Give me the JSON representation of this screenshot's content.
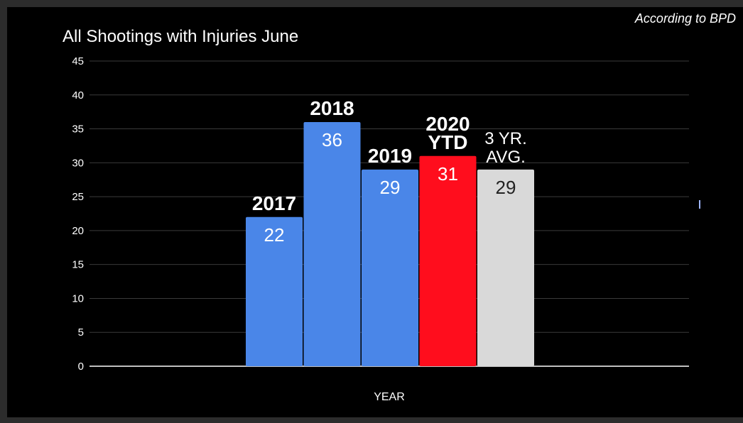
{
  "title": "All Shootings with Injuries June",
  "source_note": "According to BPD",
  "chart_data": {
    "type": "bar",
    "title": "All Shootings with Injuries June",
    "xlabel": "YEAR",
    "ylabel": "",
    "ylim": [
      0,
      45
    ],
    "yticks": [
      0,
      5,
      10,
      15,
      20,
      25,
      30,
      35,
      40,
      45
    ],
    "grid": true,
    "bars": [
      {
        "label_lines": [
          "2017"
        ],
        "value": 22,
        "value_label": "22",
        "color": "#4a86e8",
        "label_bold": true,
        "value_color": "#ffffff"
      },
      {
        "label_lines": [
          "2018"
        ],
        "value": 36,
        "value_label": "36",
        "color": "#4a86e8",
        "label_bold": true,
        "value_color": "#ffffff"
      },
      {
        "label_lines": [
          "2019"
        ],
        "value": 29,
        "value_label": "29",
        "color": "#4a86e8",
        "label_bold": true,
        "value_color": "#ffffff"
      },
      {
        "label_lines": [
          "2020",
          "YTD"
        ],
        "value": 31,
        "value_label": "31",
        "color": "#ff0d1d",
        "label_bold": true,
        "value_color": "#ffffff"
      },
      {
        "label_lines": [
          "3 YR.",
          "AVG."
        ],
        "value": 29,
        "value_label": "29",
        "color": "#d9d9d9",
        "label_bold": false,
        "value_color": "#222222"
      }
    ]
  }
}
